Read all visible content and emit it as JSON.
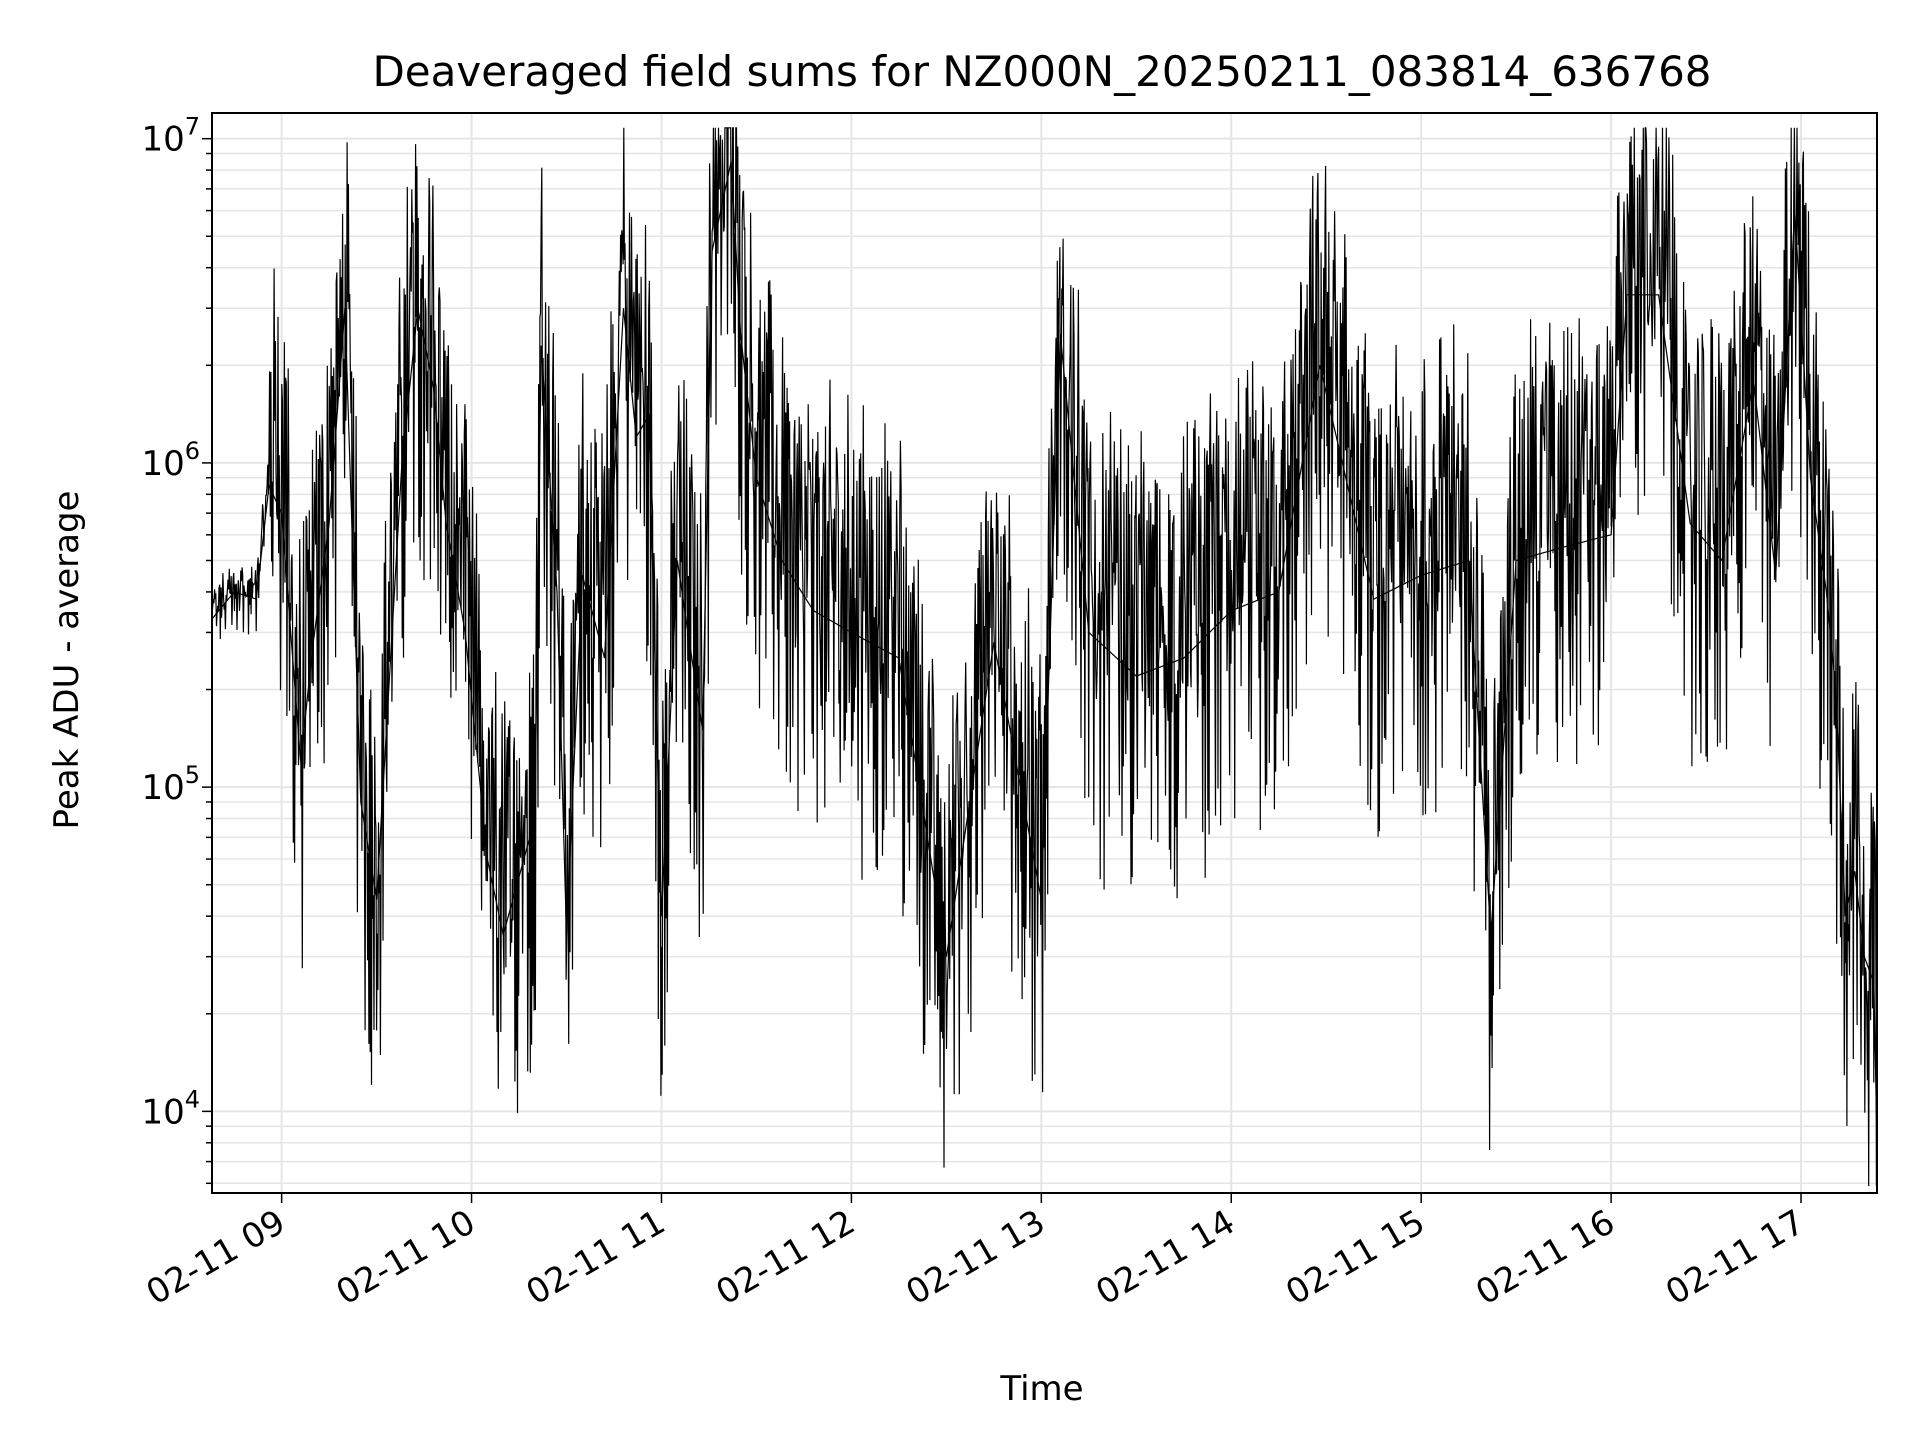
{
  "chart_data": {
    "type": "line",
    "title": "Deaveraged field sums for NZ000N_20250211_083814_636768",
    "xlabel": "Time",
    "ylabel": "Peak ADU - average",
    "yscale": "log",
    "ylim": [
      5600,
      12000000
    ],
    "xlim": [
      "2025-02-11 08:38",
      "2025-02-11 17:24"
    ],
    "grid": true,
    "line_color": "#000000",
    "grid_color": "#e5e5e5",
    "x_ticks": [
      "02-11 09",
      "02-11 10",
      "02-11 11",
      "02-11 12",
      "02-11 13",
      "02-11 14",
      "02-11 15",
      "02-11 16",
      "02-11 17"
    ],
    "y_ticks": [
      {
        "base": "10",
        "exp": "4",
        "value": 10000
      },
      {
        "base": "10",
        "exp": "5",
        "value": 100000
      },
      {
        "base": "10",
        "exp": "6",
        "value": 1000000
      },
      {
        "base": "10",
        "exp": "7",
        "value": 10000000
      }
    ],
    "series": [
      {
        "points": [
          [
            "2025-02-11 08:38",
            330000
          ],
          [
            "2025-02-11 08:45",
            400000
          ],
          [
            "2025-02-11 08:52",
            380000
          ],
          [
            "2025-02-11 08:56",
            850000
          ],
          [
            "2025-02-11 09:00",
            700000
          ],
          [
            "2025-02-11 09:06",
            120000
          ],
          [
            "2025-02-11 09:10",
            280000
          ],
          [
            "2025-02-11 09:15",
            650000
          ],
          [
            "2025-02-11 09:20",
            3000000
          ],
          [
            "2025-02-11 09:25",
            90000
          ],
          [
            "2025-02-11 09:30",
            45000
          ],
          [
            "2025-02-11 09:38",
            1000000
          ],
          [
            "2025-02-11 09:43",
            3000000
          ],
          [
            "2025-02-11 09:48",
            1700000
          ],
          [
            "2025-02-11 09:52",
            650000
          ],
          [
            "2025-02-11 09:58",
            300000
          ],
          [
            "2025-02-11 10:05",
            60000
          ],
          [
            "2025-02-11 10:10",
            35000
          ],
          [
            "2025-02-11 10:20",
            80000
          ],
          [
            "2025-02-11 10:22",
            2300000
          ],
          [
            "2025-02-11 10:27",
            400000
          ],
          [
            "2025-02-11 10:30",
            35000
          ],
          [
            "2025-02-11 10:35",
            450000
          ],
          [
            "2025-02-11 10:42",
            250000
          ],
          [
            "2025-02-11 10:48",
            3000000
          ],
          [
            "2025-02-11 10:52",
            1200000
          ],
          [
            "2025-02-11 10:56",
            1400000
          ],
          [
            "2025-02-11 11:00",
            40000
          ],
          [
            "2025-02-11 11:05",
            500000
          ],
          [
            "2025-02-11 11:13",
            150000
          ],
          [
            "2025-02-11 11:16",
            4500000
          ],
          [
            "2025-02-11 11:22",
            8500000
          ],
          [
            "2025-02-11 11:25",
            2500000
          ],
          [
            "2025-02-11 11:30",
            900000
          ],
          [
            "2025-02-11 11:38",
            500000
          ],
          [
            "2025-02-11 11:48",
            350000
          ],
          [
            "2025-02-11 12:00",
            300000
          ],
          [
            "2025-02-11 12:15",
            250000
          ],
          [
            "2025-02-11 12:30",
            30000
          ],
          [
            "2025-02-11 12:45",
            280000
          ],
          [
            "2025-02-11 13:00",
            45000
          ],
          [
            "2025-02-11 13:06",
            2500000
          ],
          [
            "2025-02-11 13:15",
            300000
          ],
          [
            "2025-02-11 13:30",
            220000
          ],
          [
            "2025-02-11 13:45",
            250000
          ],
          [
            "2025-02-11 14:00",
            350000
          ],
          [
            "2025-02-11 14:15",
            400000
          ],
          [
            "2025-02-11 14:28",
            2000000
          ],
          [
            "2025-02-11 14:45",
            380000
          ],
          [
            "2025-02-11 15:00",
            450000
          ],
          [
            "2025-02-11 15:15",
            500000
          ],
          [
            "2025-02-11 15:22",
            35000
          ],
          [
            "2025-02-11 15:30",
            500000
          ],
          [
            "2025-02-11 15:45",
            550000
          ],
          [
            "2025-02-11 16:00",
            600000
          ],
          [
            "2025-02-11 16:05",
            3300000
          ],
          [
            "2025-02-11 16:15",
            3300000
          ],
          [
            "2025-02-11 16:25",
            650000
          ],
          [
            "2025-02-11 16:35",
            500000
          ],
          [
            "2025-02-11 16:45",
            1800000
          ],
          [
            "2025-02-11 16:52",
            450000
          ],
          [
            "2025-02-11 16:58",
            6000000
          ],
          [
            "2025-02-11 17:03",
            900000
          ],
          [
            "2025-02-11 17:08",
            400000
          ],
          [
            "2025-02-11 17:11",
            200000
          ],
          [
            "2025-02-11 17:14",
            40000
          ],
          [
            "2025-02-11 17:17",
            55000
          ],
          [
            "2025-02-11 17:20",
            30000
          ],
          [
            "2025-02-11 17:23",
            25000
          ],
          [
            "2025-02-11 17:24",
            8000
          ]
        ]
      }
    ]
  }
}
